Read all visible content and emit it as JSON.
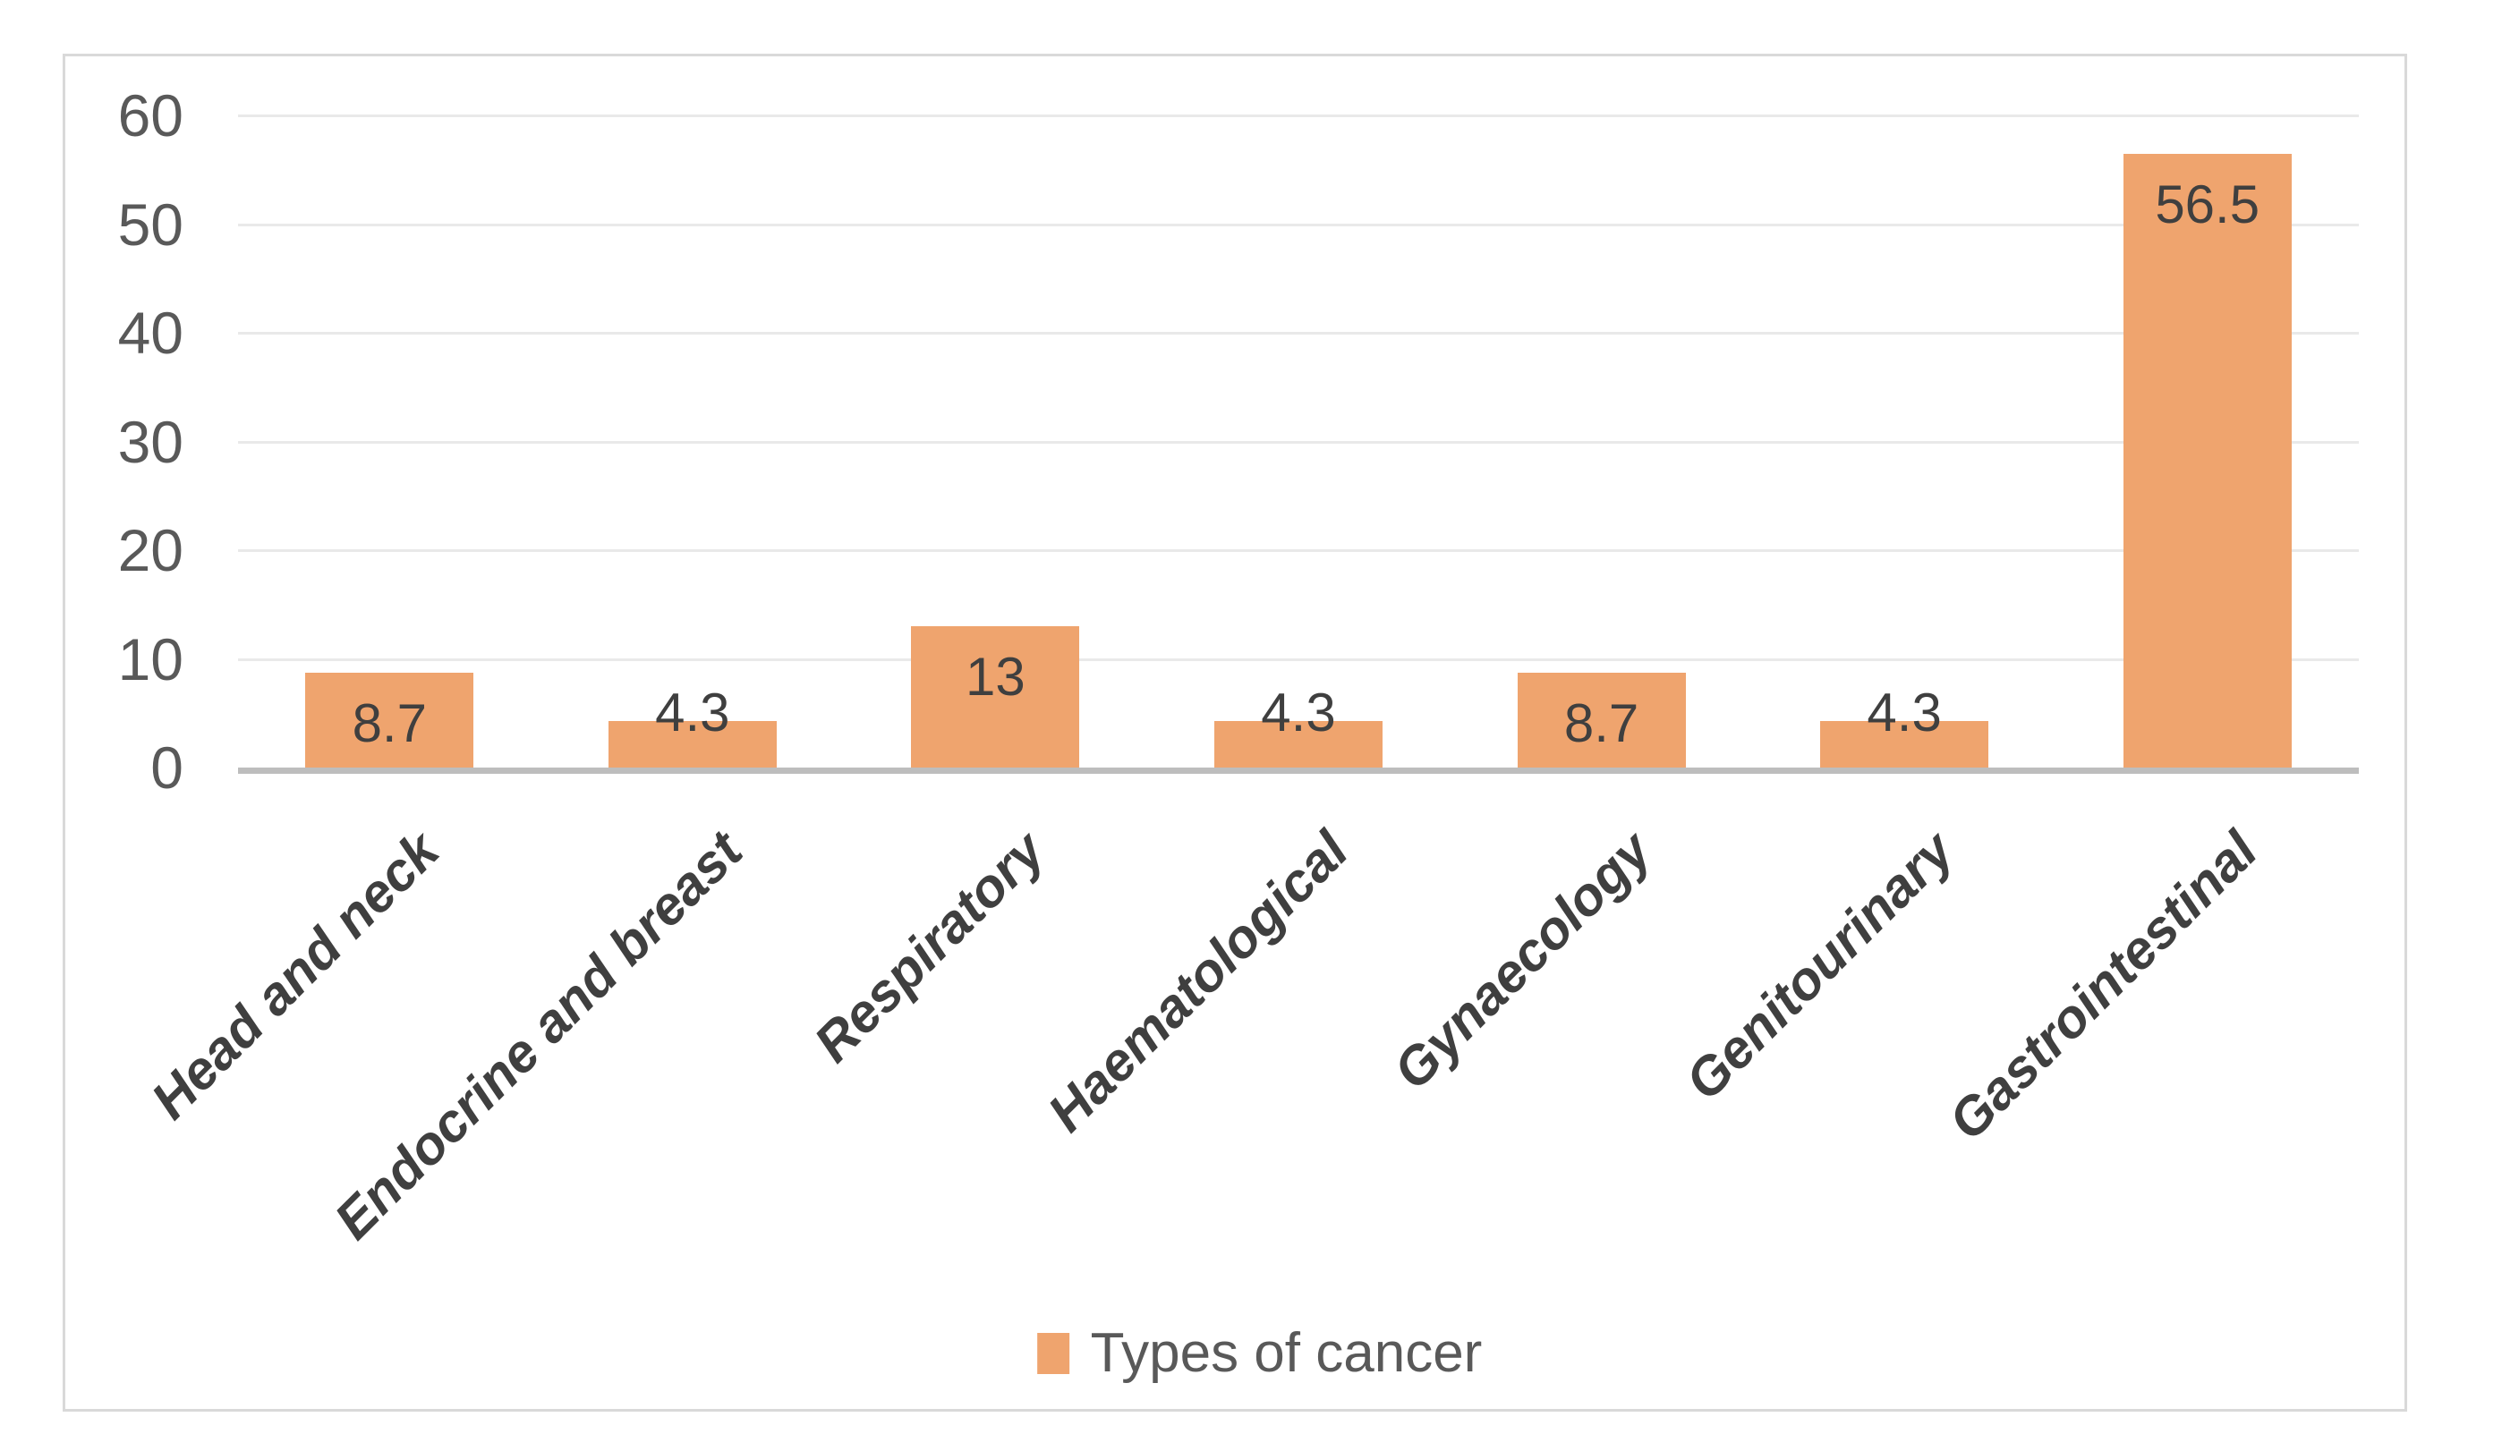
{
  "chart_data": {
    "type": "bar",
    "title": "",
    "categories": [
      "Head and neck",
      "Endocrine and breast",
      "Respiratory",
      "Haematological",
      "Gynaecology",
      "Genitourinary",
      "Gastrointestinal"
    ],
    "series": [
      {
        "name": "Types of cancer",
        "values": [
          8.7,
          4.3,
          13,
          4.3,
          8.7,
          4.3,
          56.5
        ],
        "labels": [
          "8.7",
          "4.3",
          "13",
          "4.3",
          "8.7",
          "4.3",
          "56.5"
        ]
      }
    ],
    "xlabel": "",
    "ylabel": "",
    "ylim": [
      0,
      60
    ],
    "yticks": [
      0,
      10,
      20,
      30,
      40,
      50,
      60
    ],
    "ytick_labels": [
      "0",
      "10",
      "20",
      "30",
      "40",
      "50",
      "60"
    ],
    "grid": true,
    "legend_position": "bottom",
    "legend": {
      "label": "Types of cancer"
    },
    "colors": {
      "bar": "#EFA46E",
      "gridline": "#E9E9E9",
      "axis_line": "#BDBDBD",
      "tick_label": "#595959",
      "data_label": "#3F3F3F",
      "category_label": "#3F3F3F",
      "legend_label": "#595959",
      "frame_border": "#D9D9D9"
    }
  }
}
